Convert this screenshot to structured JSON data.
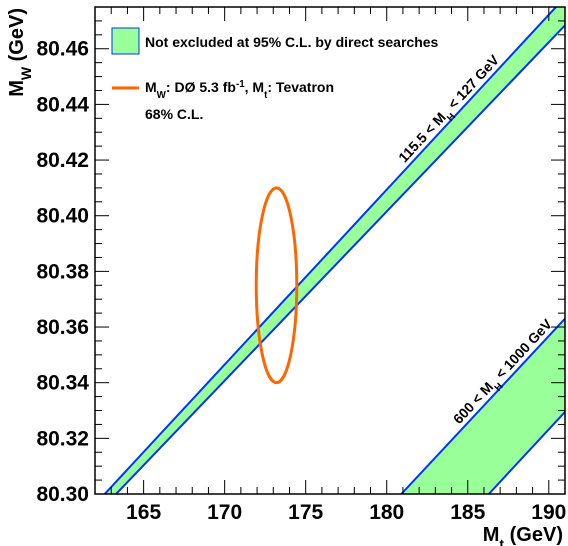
{
  "chart_data": {
    "type": "scatter",
    "xlabel": {
      "main": "M",
      "sub": "t",
      "unit": " (GeV)"
    },
    "ylabel": {
      "main": "M",
      "sub": "W",
      "unit": " (GeV)"
    },
    "xlim": [
      162,
      191
    ],
    "ylim": [
      80.3,
      80.475
    ],
    "xticks": [
      165,
      170,
      175,
      180,
      185,
      190
    ],
    "yticks": [
      80.3,
      80.32,
      80.34,
      80.36,
      80.38,
      80.4,
      80.42,
      80.44,
      80.46
    ],
    "xtick_labels": [
      "165",
      "170",
      "175",
      "180",
      "185",
      "190"
    ],
    "ytick_labels": [
      "80.30",
      "80.32",
      "80.34",
      "80.36",
      "80.38",
      "80.40",
      "80.42",
      "80.44",
      "80.46"
    ],
    "grid": false,
    "legend_position": "top-left",
    "bands": [
      {
        "label_parts": [
          {
            "t": "115.5 < M",
            "sub": false
          },
          {
            "t": "H",
            "sub": true
          },
          {
            "t": " < 127 GeV",
            "sub": false
          }
        ],
        "upper": [
          [
            162.6,
            80.3
          ],
          [
            191,
            80.4785
          ]
        ],
        "lower": [
          [
            163.3,
            80.3
          ],
          [
            191,
            80.4684
          ]
        ],
        "fill": "#99ff99",
        "edge": "#0033ff"
      },
      {
        "label_parts": [
          {
            "t": "600 < M",
            "sub": false
          },
          {
            "t": "H",
            "sub": true
          },
          {
            "t": " < 1000 GeV",
            "sub": false
          }
        ],
        "upper": [
          [
            180.9,
            80.3
          ],
          [
            191,
            80.363
          ]
        ],
        "lower": [
          [
            186.3,
            80.3
          ],
          [
            191,
            80.3295
          ]
        ],
        "fill": "#99ff99",
        "edge": "#0033ff"
      }
    ],
    "ellipse": {
      "center": [
        173.2,
        80.375
      ],
      "rx": 1.25,
      "ry": 0.035,
      "color": "#ff6600"
    },
    "legend": [
      {
        "kind": "fill",
        "color": "#99ff99",
        "edge": "#0033ff",
        "label": "Not excluded at 95% C.L. by direct searches"
      },
      {
        "kind": "line",
        "color": "#ff6600",
        "label_parts": [
          {
            "t": "M",
            "s": ""
          },
          {
            "t": "W",
            "s": "sub"
          },
          {
            "t": ": DØ 5.3 fb",
            "s": ""
          },
          {
            "t": "-1",
            "s": "sup"
          },
          {
            "t": ", M",
            "s": ""
          },
          {
            "t": "t",
            "s": "sub"
          },
          {
            "t": ": Tevatron",
            "s": ""
          }
        ],
        "label2": "68% C.L."
      }
    ]
  }
}
